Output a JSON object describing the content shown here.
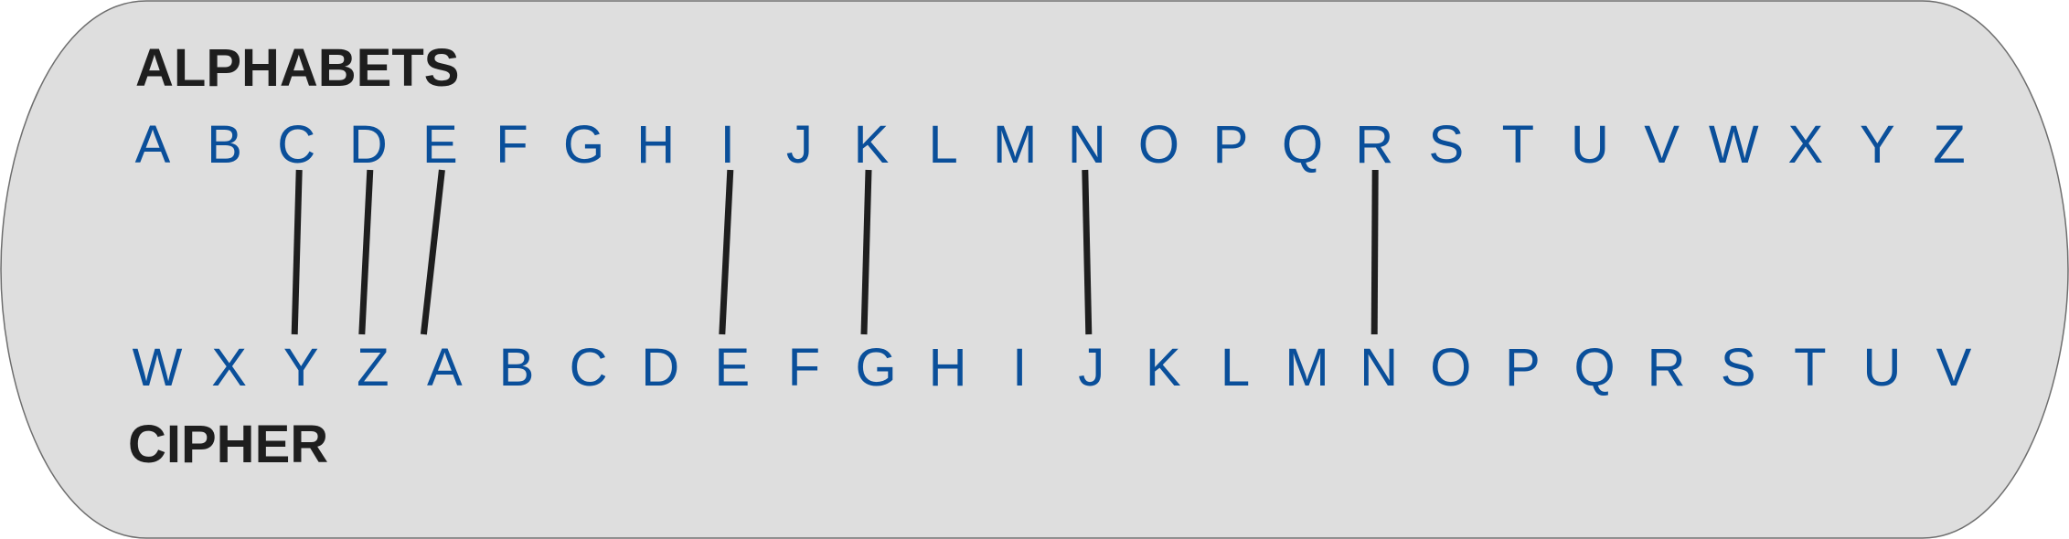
{
  "headings": {
    "top": "ALPHABETS",
    "bottom": "CIPHER"
  },
  "colors": {
    "panel_fill": "#dedede",
    "panel_stroke": "#6e6e6e",
    "letters": "#0a4f9a",
    "headings": "#1e1e1e",
    "connectors": "#1e1e1e"
  },
  "alphabet": [
    "A",
    "B",
    "C",
    "D",
    "E",
    "F",
    "G",
    "H",
    "I",
    "J",
    "K",
    "L",
    "M",
    "N",
    "O",
    "P",
    "Q",
    "R",
    "S",
    "T",
    "U",
    "V",
    "W",
    "X",
    "Y",
    "Z"
  ],
  "cipher": [
    "W",
    "X",
    "Y",
    "Z",
    "A",
    "B",
    "C",
    "D",
    "E",
    "F",
    "G",
    "H",
    "I",
    "J",
    "K",
    "L",
    "M",
    "N",
    "O",
    "P",
    "Q",
    "R",
    "S",
    "T",
    "U",
    "V"
  ],
  "connections": [
    {
      "from": 2,
      "to": 2
    },
    {
      "from": 3,
      "to": 3
    },
    {
      "from": 4,
      "to": 4
    },
    {
      "from": 8,
      "to": 8
    },
    {
      "from": 10,
      "to": 10
    },
    {
      "from": 13,
      "to": 13
    },
    {
      "from": 17,
      "to": 17
    }
  ]
}
